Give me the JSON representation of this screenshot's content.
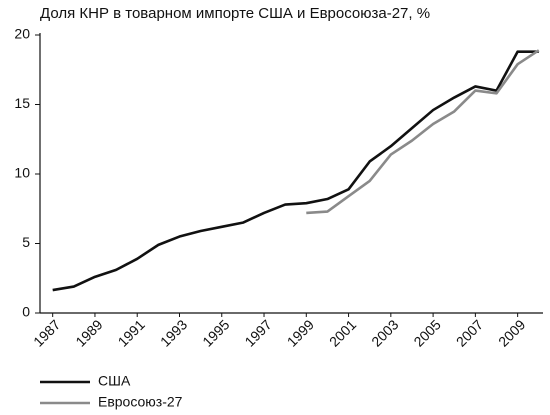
{
  "chart_data": {
    "type": "line",
    "title": "Доля КНР в товарном импорте США и Евросоюза-27, %",
    "x": [
      1987,
      1988,
      1989,
      1990,
      1991,
      1992,
      1993,
      1994,
      1995,
      1996,
      1997,
      1998,
      1999,
      2000,
      2001,
      2002,
      2003,
      2004,
      2005,
      2006,
      2007,
      2008,
      2009,
      2010
    ],
    "series": [
      {
        "name": "США",
        "color": "#111111",
        "values": [
          1.65,
          1.9,
          2.6,
          3.1,
          3.9,
          4.9,
          5.5,
          5.9,
          6.2,
          6.5,
          7.2,
          7.8,
          7.9,
          8.2,
          8.9,
          10.9,
          12.0,
          13.3,
          14.6,
          15.5,
          16.3,
          16.0,
          18.8,
          18.8
        ]
      },
      {
        "name": "Евросоюз-27",
        "color": "#8a8a8a",
        "values": [
          null,
          null,
          null,
          null,
          null,
          null,
          null,
          null,
          null,
          null,
          null,
          null,
          7.2,
          7.3,
          8.4,
          9.5,
          11.4,
          12.4,
          13.6,
          14.5,
          16.0,
          15.8,
          17.9,
          18.9
        ]
      }
    ],
    "xlim": [
      1986.4,
      2010.2
    ],
    "xticks": [
      1987,
      1989,
      1991,
      1993,
      1995,
      1997,
      1999,
      2001,
      2003,
      2005,
      2007,
      2009
    ],
    "ylim": [
      0,
      20
    ],
    "yticks": [
      0,
      5,
      10,
      15,
      20
    ],
    "grid": false,
    "legend": "bottom-left"
  }
}
